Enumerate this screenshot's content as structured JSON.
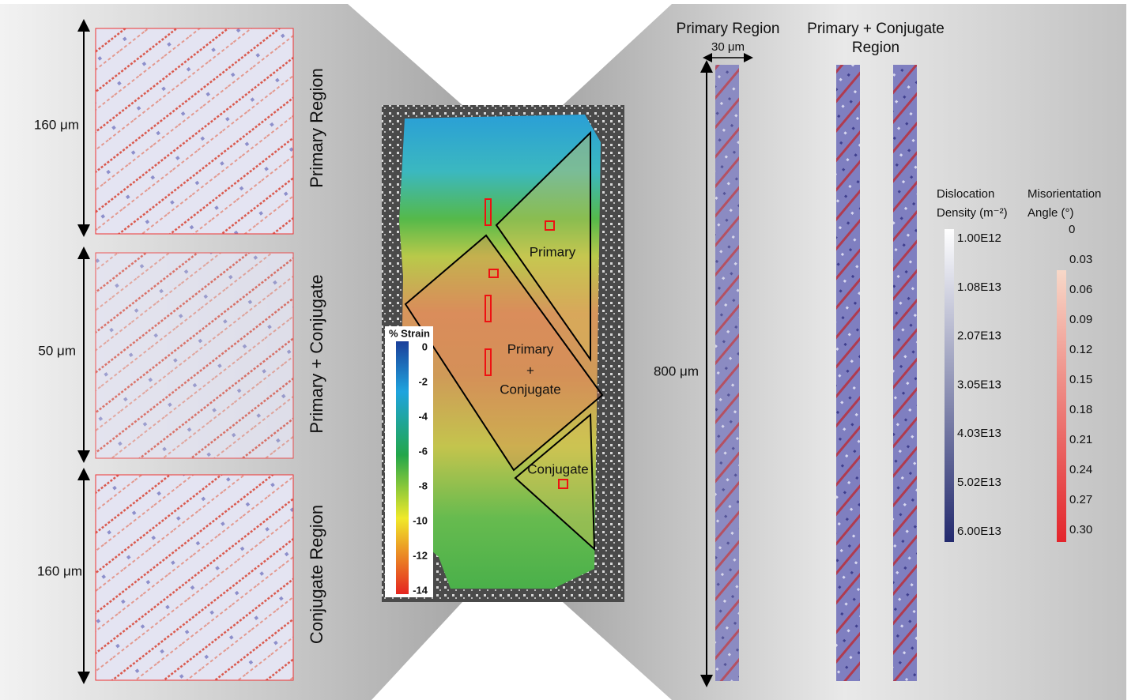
{
  "left_panels": [
    {
      "scale": "160 μm",
      "label": "Primary Region"
    },
    {
      "scale": "50 μm",
      "label": "Primary + Conjugate"
    },
    {
      "scale": "160 μm",
      "label": "Conjugate Region"
    }
  ],
  "specimen": {
    "legend": {
      "title": "% Strain",
      "ticks": [
        "0",
        "-2",
        "-4",
        "-6",
        "-8",
        "-10",
        "-12",
        "-14"
      ]
    },
    "regions": {
      "primary": "Primary",
      "primary_conjugate": [
        "Primary",
        "+",
        "Conjugate"
      ],
      "conjugate": "Conjugate"
    }
  },
  "right": {
    "primary_title": "Primary Region",
    "width_scale": "30 μm",
    "pc_title": [
      "Primary + Conjugate",
      "Region"
    ],
    "length_scale": "800 μm",
    "dislocation_legend": {
      "title": [
        "Dislocation",
        "Density (m⁻²)"
      ],
      "ticks": [
        "1.00E12",
        "1.08E13",
        "2.07E13",
        "3.05E13",
        "4.03E13",
        "5.02E13",
        "6.00E13"
      ]
    },
    "misorientation_legend": {
      "title": [
        "Misorientation",
        "Angle (°)"
      ],
      "ticks": [
        "0",
        "0.03",
        "0.06",
        "0.09",
        "0.12",
        "0.15",
        "0.18",
        "0.21",
        "0.24",
        "0.27",
        "0.30"
      ]
    }
  }
}
